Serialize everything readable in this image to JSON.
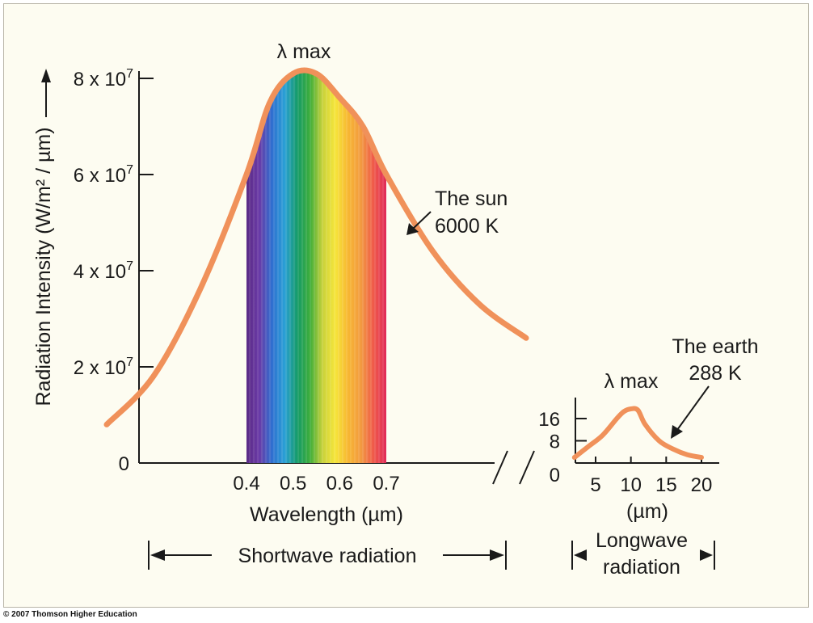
{
  "chart_data": [
    {
      "type": "line",
      "title": "",
      "ylabel": "Radiation Intensity (W/m² / µm)",
      "xlabel": "Wavelength (µm)",
      "y_ticks": [
        "0",
        "2 x 10",
        "4 x 10",
        "6 x 10",
        "8 x 10"
      ],
      "y_tick_values": [
        0,
        20000000,
        40000000,
        60000000,
        80000000
      ],
      "y_tick_exponent": "7",
      "x_ticks": [
        "0.4",
        "0.5",
        "0.6",
        "0.7"
      ],
      "x_tick_values": [
        0.4,
        0.5,
        0.6,
        0.7
      ],
      "ylim": [
        0,
        85000000
      ],
      "visible_spectrum_range": [
        0.4,
        0.7
      ],
      "series": [
        {
          "name": "The sun",
          "values_x": [
            0.1,
            0.2,
            0.3,
            0.4,
            0.45,
            0.5,
            0.55,
            0.6,
            0.65,
            0.7,
            0.8,
            0.9,
            1.0
          ],
          "values_y": [
            8000000,
            18000000,
            36000000,
            60000000,
            75000000,
            81000000,
            81000000,
            76000000,
            70000000,
            60000000,
            44000000,
            33000000,
            26000000
          ]
        }
      ],
      "annotations": {
        "peak_label": "λ max",
        "series_label_line1": "The sun",
        "series_label_line2": "6000 K"
      },
      "band_label": "Shortwave radiation"
    },
    {
      "type": "line",
      "title": "",
      "xlabel": "(µm)",
      "y_ticks": [
        "0",
        "8",
        "16"
      ],
      "y_tick_values": [
        0,
        8,
        16
      ],
      "x_ticks": [
        "5",
        "10",
        "15",
        "20"
      ],
      "x_tick_values": [
        5,
        10,
        15,
        20
      ],
      "ylim": [
        0,
        22
      ],
      "series": [
        {
          "name": "The earth",
          "values_x": [
            2,
            4,
            6,
            8,
            9,
            10,
            11,
            12,
            14,
            16,
            18,
            20
          ],
          "values_y": [
            2,
            6,
            10,
            16,
            18.5,
            19.5,
            19,
            14,
            8,
            5,
            3,
            2
          ]
        }
      ],
      "annotations": {
        "peak_label": "λ max",
        "series_label_line1": "The earth",
        "series_label_line2": "288 K"
      },
      "band_label_line1": "Longwave",
      "band_label_line2": "radiation"
    }
  ],
  "colors": {
    "curve": "#f0915a",
    "background": "#fdfcf1",
    "text": "#1a1a1a",
    "spectrum": [
      "#5a2a86",
      "#6a3aa6",
      "#2f6fd0",
      "#2aa0d6",
      "#159b68",
      "#3fae3a",
      "#c9d23a",
      "#f6e53a",
      "#f7b632",
      "#f29a40",
      "#ef5a4a",
      "#e02a58"
    ]
  },
  "footer": {
    "copyright": "© 2007 Thomson Higher Education"
  }
}
